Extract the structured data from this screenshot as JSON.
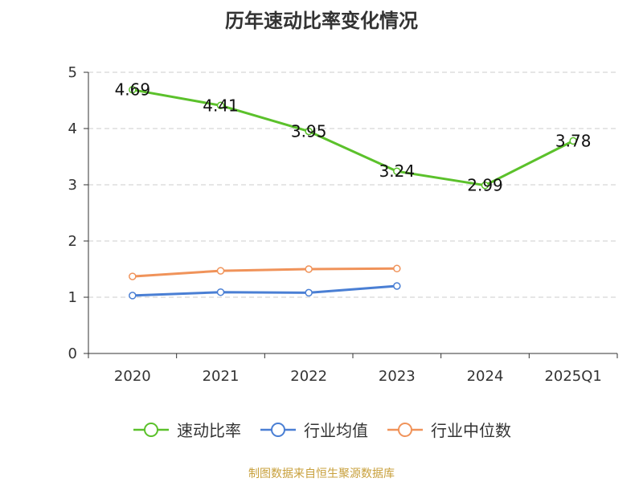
{
  "chart_data": {
    "type": "line",
    "title": "历年速动比率变化情况",
    "categories": [
      "2020",
      "2021",
      "2022",
      "2023",
      "2024",
      "2025Q1"
    ],
    "ylim": [
      0,
      5
    ],
    "yticks": [
      "0",
      "1",
      "2",
      "3",
      "4",
      "5"
    ],
    "grid": true,
    "legend_position": "bottom",
    "series": [
      {
        "name": "速动比率",
        "color": "#5bc12b",
        "values": [
          4.69,
          4.41,
          3.95,
          3.24,
          2.99,
          3.78
        ],
        "labels": [
          "4.69",
          "4.41",
          "3.95",
          "3.24",
          "2.99",
          "3.78"
        ]
      },
      {
        "name": "行业均值",
        "color": "#4a7fd4",
        "values": [
          1.03,
          1.09,
          1.08,
          1.2,
          null,
          null
        ]
      },
      {
        "name": "行业中位数",
        "color": "#f0935a",
        "values": [
          1.37,
          1.47,
          1.5,
          1.51,
          null,
          null
        ]
      }
    ]
  },
  "source_note": "制图数据来自恒生聚源数据库"
}
